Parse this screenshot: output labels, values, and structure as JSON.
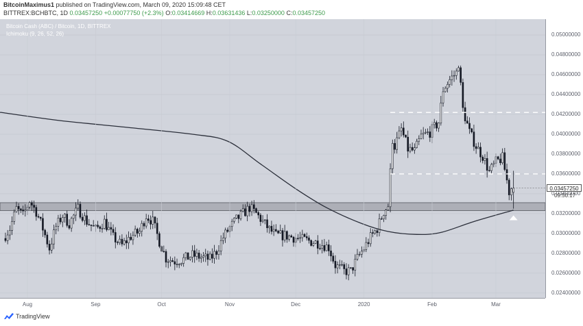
{
  "header": {
    "publisher": "BitcoinMaximus1",
    "publish_text": "published on TradingView.com, March 09, 2020 15:09:48 CET",
    "symbol": "BITTREX:BCHBTC, 1D",
    "last": "0.03457250",
    "change": "+0.00077750 (+2.3%)",
    "o_label": "O:",
    "o": "0.03414669",
    "h_label": "H:",
    "h": "0.03631436",
    "l_label": "L:",
    "l": "0.03250000",
    "c_label": "C:",
    "c": "0.03457250"
  },
  "legend": {
    "line1": "Bitcoin Cash (ABC) / Bitcoin, 1D, BITTREX",
    "line2": "Ichimoku (9, 26, 52, 26)"
  },
  "price_label": "0.03457250",
  "countdown": "09:50:17",
  "footer": {
    "brand": "TradingView"
  },
  "colors": {
    "background": "#d1d4dc",
    "candle_up": "#ffffff",
    "candle_down": "#131722",
    "ma_line": "#2a2e39",
    "zone_fill": "#a9abb2",
    "dashed_line": "#ffffff"
  },
  "chart_data": {
    "type": "candlestick",
    "title": "Bitcoin Cash (ABC) / Bitcoin, 1D, BITTREX",
    "ylim": [
      0.0235,
      0.0516
    ],
    "y_ticks": [
      "0.02400000",
      "0.02600000",
      "0.02800000",
      "0.03000000",
      "0.03200000",
      "0.03400000",
      "0.03600000",
      "0.03800000",
      "0.04000000",
      "0.04200000",
      "0.04400000",
      "0.04600000",
      "0.04800000",
      "0.05000000"
    ],
    "x_ticks": [
      "Aug",
      "Sep",
      "Oct",
      "Nov",
      "Dec",
      "2020",
      "Feb",
      "Mar"
    ],
    "anchors": [
      [
        "2019-07-22",
        0.0295
      ],
      [
        "2019-07-25",
        0.0305
      ],
      [
        "2019-07-28",
        0.0325
      ],
      [
        "2019-07-31",
        0.0318
      ],
      [
        "2019-08-03",
        0.0333
      ],
      [
        "2019-08-06",
        0.0322
      ],
      [
        "2019-08-09",
        0.0305
      ],
      [
        "2019-08-12",
        0.0285
      ],
      [
        "2019-08-15",
        0.0307
      ],
      [
        "2019-08-18",
        0.0318
      ],
      [
        "2019-08-21",
        0.031
      ],
      [
        "2019-08-25",
        0.0325
      ],
      [
        "2019-08-29",
        0.0312
      ],
      [
        "2019-09-02",
        0.0304
      ],
      [
        "2019-09-06",
        0.0312
      ],
      [
        "2019-09-10",
        0.0296
      ],
      [
        "2019-09-14",
        0.0288
      ],
      [
        "2019-09-18",
        0.0297
      ],
      [
        "2019-09-22",
        0.0302
      ],
      [
        "2019-09-25",
        0.0318
      ],
      [
        "2019-09-28",
        0.0312
      ],
      [
        "2019-10-01",
        0.0292
      ],
      [
        "2019-10-04",
        0.0275
      ],
      [
        "2019-10-08",
        0.0272
      ],
      [
        "2019-10-12",
        0.0274
      ],
      [
        "2019-10-16",
        0.0278
      ],
      [
        "2019-10-20",
        0.0276
      ],
      [
        "2019-10-24",
        0.0274
      ],
      [
        "2019-10-27",
        0.0282
      ],
      [
        "2019-10-30",
        0.0296
      ],
      [
        "2019-11-02",
        0.0306
      ],
      [
        "2019-11-05",
        0.0314
      ],
      [
        "2019-11-08",
        0.032
      ],
      [
        "2019-11-11",
        0.0326
      ],
      [
        "2019-11-14",
        0.032
      ],
      [
        "2019-11-17",
        0.0312
      ],
      [
        "2019-11-20",
        0.0304
      ],
      [
        "2019-11-23",
        0.0298
      ],
      [
        "2019-11-27",
        0.0298
      ],
      [
        "2019-12-01",
        0.0296
      ],
      [
        "2019-12-05",
        0.0294
      ],
      [
        "2019-12-09",
        0.0292
      ],
      [
        "2019-12-13",
        0.029
      ],
      [
        "2019-12-17",
        0.0286
      ],
      [
        "2019-12-20",
        0.0268
      ],
      [
        "2019-12-24",
        0.0262
      ],
      [
        "2019-12-27",
        0.0262
      ],
      [
        "2019-12-30",
        0.0275
      ],
      [
        "2020-01-02",
        0.0285
      ],
      [
        "2020-01-05",
        0.0296
      ],
      [
        "2020-01-08",
        0.0305
      ],
      [
        "2020-01-11",
        0.0322
      ],
      [
        "2020-01-13",
        0.0328
      ],
      [
        "2020-01-15",
        0.0395
      ],
      [
        "2020-01-16",
        0.0388
      ],
      [
        "2020-01-19",
        0.0405
      ],
      [
        "2020-01-22",
        0.0385
      ],
      [
        "2020-01-25",
        0.0383
      ],
      [
        "2020-01-28",
        0.0398
      ],
      [
        "2020-02-01",
        0.0402
      ],
      [
        "2020-02-05",
        0.0412
      ],
      [
        "2020-02-07",
        0.0445
      ],
      [
        "2020-02-10",
        0.0455
      ],
      [
        "2020-02-13",
        0.0462
      ],
      [
        "2020-02-14",
        0.0472
      ],
      [
        "2020-02-16",
        0.0425
      ],
      [
        "2020-02-19",
        0.0402
      ],
      [
        "2020-02-22",
        0.0388
      ],
      [
        "2020-02-25",
        0.0378
      ],
      [
        "2020-02-28",
        0.0362
      ],
      [
        "2020-03-02",
        0.0372
      ],
      [
        "2020-03-05",
        0.0376
      ],
      [
        "2020-03-08",
        0.0342
      ],
      [
        "2020-03-09",
        0.034572
      ]
    ],
    "last_candle": {
      "date": "2020-03-09",
      "open": 0.03414669,
      "high": 0.03631436,
      "low": 0.0325,
      "close": 0.0345725
    },
    "moving_average": [
      [
        "2019-07-20",
        0.0422
      ],
      [
        "2019-08-15",
        0.0414
      ],
      [
        "2019-09-15",
        0.0407
      ],
      [
        "2019-10-15",
        0.04
      ],
      [
        "2019-10-31",
        0.0393
      ],
      [
        "2019-11-15",
        0.037
      ],
      [
        "2019-12-01",
        0.0345
      ],
      [
        "2019-12-15",
        0.0326
      ],
      [
        "2019-12-31",
        0.031
      ],
      [
        "2020-01-12",
        0.0302
      ],
      [
        "2020-01-25",
        0.0299
      ],
      [
        "2020-02-05",
        0.0301
      ],
      [
        "2020-02-20",
        0.0312
      ],
      [
        "2020-03-09",
        0.03235
      ]
    ],
    "support_zone": [
      0.0323,
      0.0331
    ],
    "dashed_levels": [
      0.0422,
      0.036
    ]
  }
}
